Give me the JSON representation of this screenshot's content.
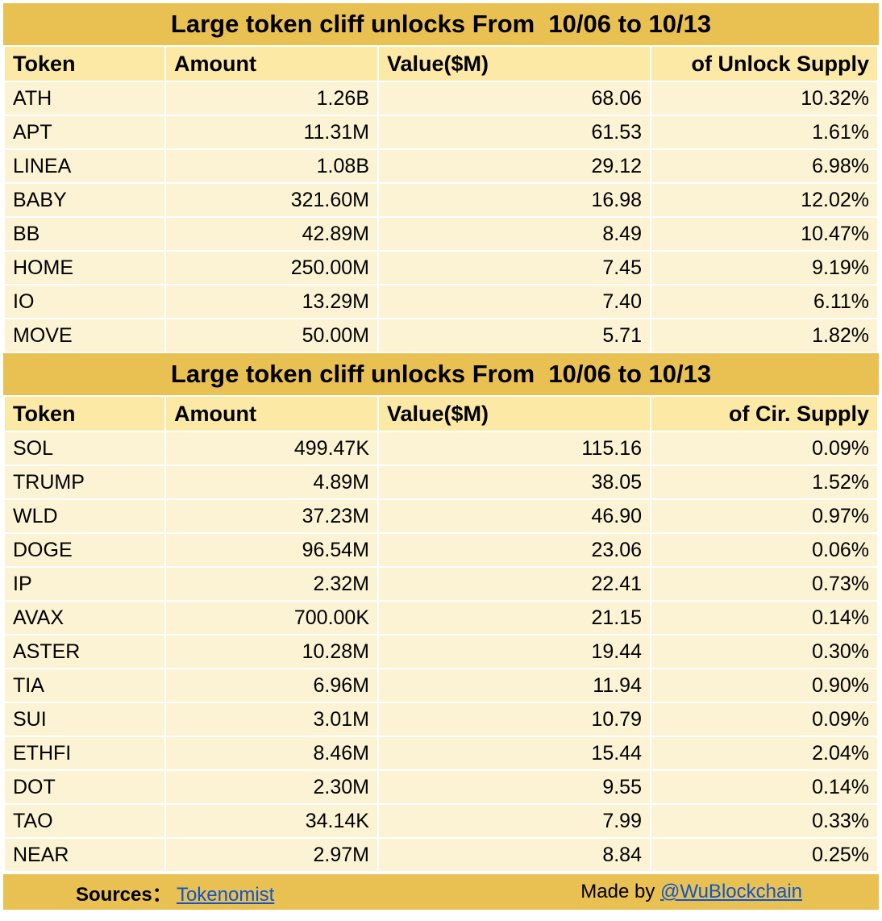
{
  "colors": {
    "band_gold": "#e9c052",
    "header_yellow": "#fce9a6",
    "row_cream": "#fbf3d4",
    "link_blue": "#1155cc",
    "text": "#000000"
  },
  "chart_data": [
    {
      "type": "table",
      "title": "Large token cliff unlocks From  10/06 to 10/13",
      "columns": [
        "Token",
        "Amount",
        "Value($M)",
        "of Unlock Supply"
      ],
      "rows": [
        [
          "ATH",
          "1.26B",
          "68.06",
          "10.32%"
        ],
        [
          "APT",
          "11.31M",
          "61.53",
          "1.61%"
        ],
        [
          "LINEA",
          "1.08B",
          "29.12",
          "6.98%"
        ],
        [
          "BABY",
          "321.60M",
          "16.98",
          "12.02%"
        ],
        [
          "BB",
          "42.89M",
          "8.49",
          "10.47%"
        ],
        [
          "HOME",
          "250.00M",
          "7.45",
          "9.19%"
        ],
        [
          "IO",
          "13.29M",
          "7.40",
          "6.11%"
        ],
        [
          "MOVE",
          "50.00M",
          "5.71",
          "1.82%"
        ]
      ]
    },
    {
      "type": "table",
      "title": "Large token cliff unlocks From  10/06 to 10/13",
      "columns": [
        "Token",
        "Amount",
        "Value($M)",
        "of Cir. Supply"
      ],
      "rows": [
        [
          "SOL",
          "499.47K",
          "115.16",
          "0.09%"
        ],
        [
          "TRUMP",
          "4.89M",
          "38.05",
          "1.52%"
        ],
        [
          "WLD",
          "37.23M",
          "46.90",
          "0.97%"
        ],
        [
          "DOGE",
          "96.54M",
          "23.06",
          "0.06%"
        ],
        [
          "IP",
          "2.32M",
          "22.41",
          "0.73%"
        ],
        [
          "AVAX",
          "700.00K",
          "21.15",
          "0.14%"
        ],
        [
          "ASTER",
          "10.28M",
          "19.44",
          "0.30%"
        ],
        [
          "TIA",
          "6.96M",
          "11.94",
          "0.90%"
        ],
        [
          "SUI",
          "3.01M",
          "10.79",
          "0.09%"
        ],
        [
          "ETHFI",
          "8.46M",
          "15.44",
          "2.04%"
        ],
        [
          "DOT",
          "2.30M",
          "9.55",
          "0.14%"
        ],
        [
          "TAO",
          "34.14K",
          "7.99",
          "0.33%"
        ],
        [
          "NEAR",
          "2.97M",
          "8.84",
          "0.25%"
        ]
      ]
    }
  ],
  "footer": {
    "sources_label": "Sources：",
    "sources_link": "Tokenomist",
    "made_by_label": "Made by",
    "made_by_link": "@WuBlockchain"
  }
}
